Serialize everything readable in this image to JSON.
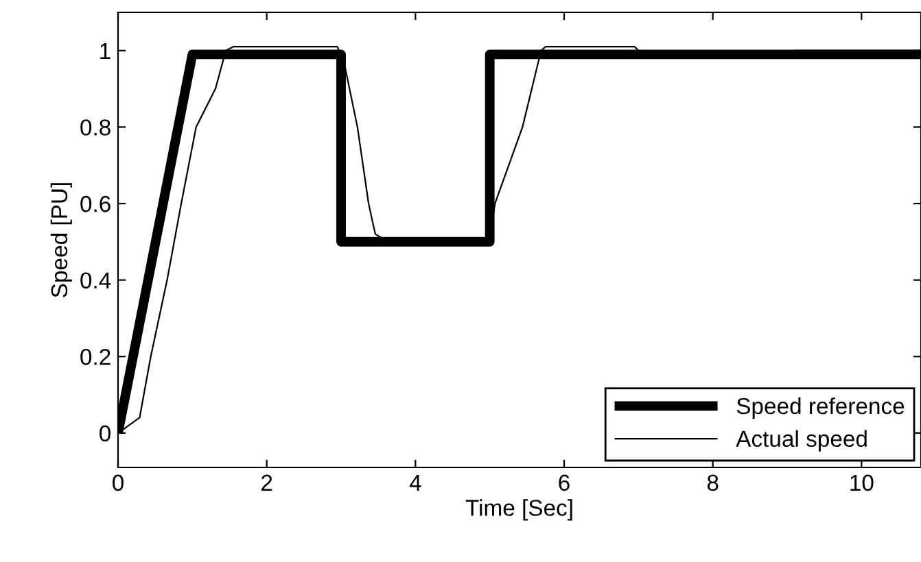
{
  "chart_data": {
    "type": "line",
    "xlabel": "Time [Sec]",
    "ylabel": "Speed [PU]",
    "xlim": [
      0,
      10.8
    ],
    "ylim": [
      -0.09,
      1.1
    ],
    "xticks": [
      0,
      2,
      4,
      6,
      8,
      10
    ],
    "yticks": [
      0,
      0.2,
      0.4,
      0.6,
      0.8,
      1
    ],
    "grid": false,
    "legend": "bottom right",
    "series": [
      {
        "name": "Speed reference",
        "color": "#000000",
        "x": [
          0,
          1,
          3,
          3,
          5,
          5,
          10.8
        ],
        "values": [
          0,
          0.99,
          0.99,
          0.5,
          0.5,
          0.99,
          0.99
        ]
      },
      {
        "name": "Actual speed",
        "color": "#000000",
        "x": [
          0,
          0.29,
          0.44,
          0.66,
          0.85,
          1.05,
          1.31,
          1.45,
          1.55,
          2.95,
          3.05,
          3.22,
          3.37,
          3.46,
          3.55,
          5.0,
          5.07,
          5.44,
          5.69,
          5.75,
          6.95,
          7.05,
          9.0,
          9.1,
          10.8
        ],
        "values": [
          0,
          0.04,
          0.2,
          0.4,
          0.6,
          0.8,
          0.9,
          1.0,
          1.01,
          1.01,
          0.96,
          0.8,
          0.6,
          0.52,
          0.51,
          0.51,
          0.6,
          0.8,
          1.0,
          1.01,
          1.01,
          0.99,
          0.99,
          1.0,
          1.0
        ]
      }
    ]
  }
}
